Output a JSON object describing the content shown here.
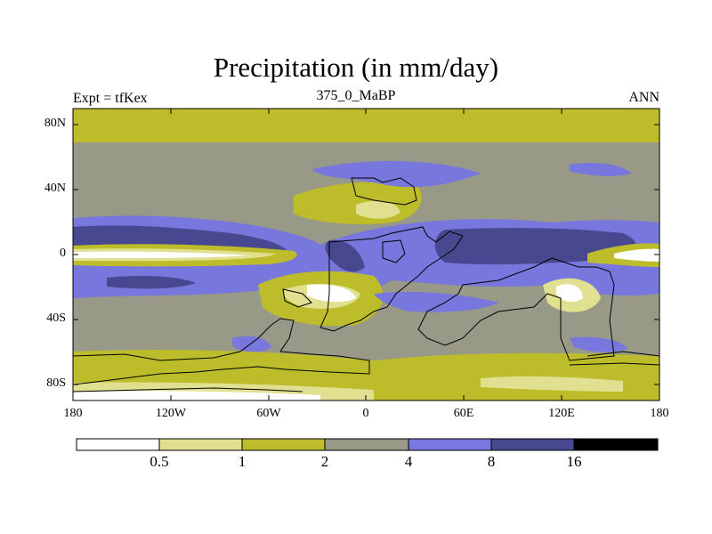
{
  "title": "Precipitation (in mm/day)",
  "subtitle_left": "Expt = tfKex",
  "subtitle_center": "375_0_MaBP",
  "subtitle_right": "ANN",
  "y_ticks": [
    "80N",
    "40N",
    "0",
    "40S",
    "80S"
  ],
  "x_ticks": [
    "180",
    "120W",
    "60W",
    "0",
    "60E",
    "120E",
    "180"
  ],
  "colorbar": {
    "labels": [
      "0.5",
      "1",
      "2",
      "4",
      "8",
      "16"
    ],
    "colors": [
      "#ffffff",
      "#e0e090",
      "#bdbd2b",
      "#999988",
      "#7777dd",
      "#484890",
      "#000000"
    ]
  }
}
